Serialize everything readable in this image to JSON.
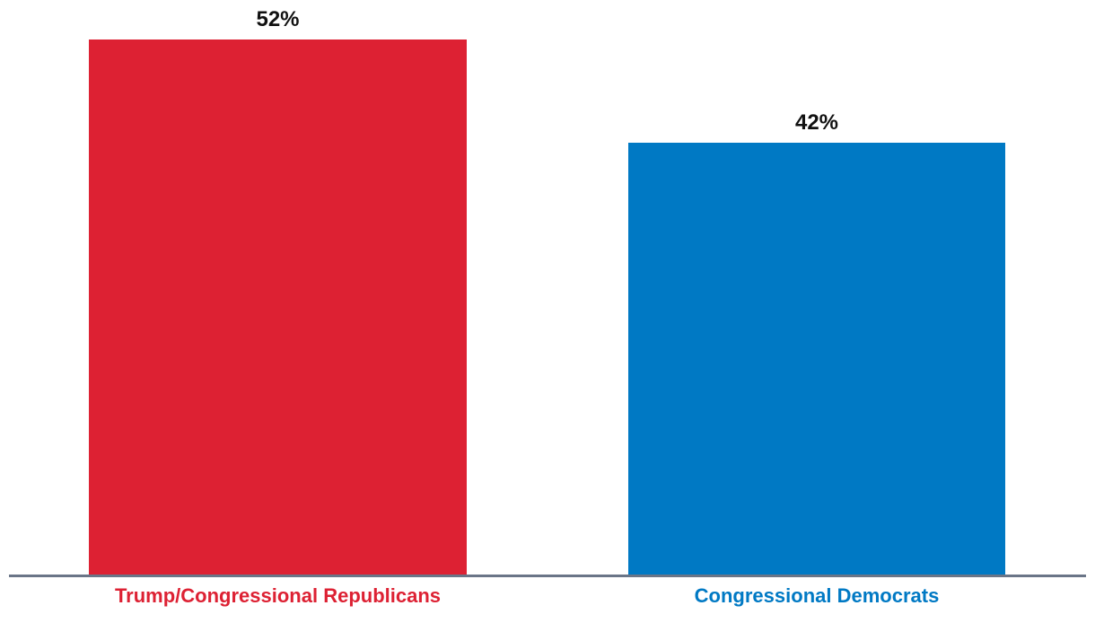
{
  "chart_data": {
    "type": "bar",
    "categories": [
      "Trump/Congressional Republicans",
      "Congressional Democrats"
    ],
    "values": [
      52,
      42
    ],
    "value_labels": [
      "52%",
      "42%"
    ],
    "bar_colors": [
      "#DD2133",
      "#0079C4"
    ],
    "category_label_colors": [
      "#DD2133",
      "#0079C4"
    ],
    "value_label_color": "#111111",
    "axis_line_color": "#6A7587",
    "title": "",
    "xlabel": "",
    "ylabel": "",
    "ylim": [
      0,
      55
    ],
    "grid": false,
    "legend": "none"
  }
}
